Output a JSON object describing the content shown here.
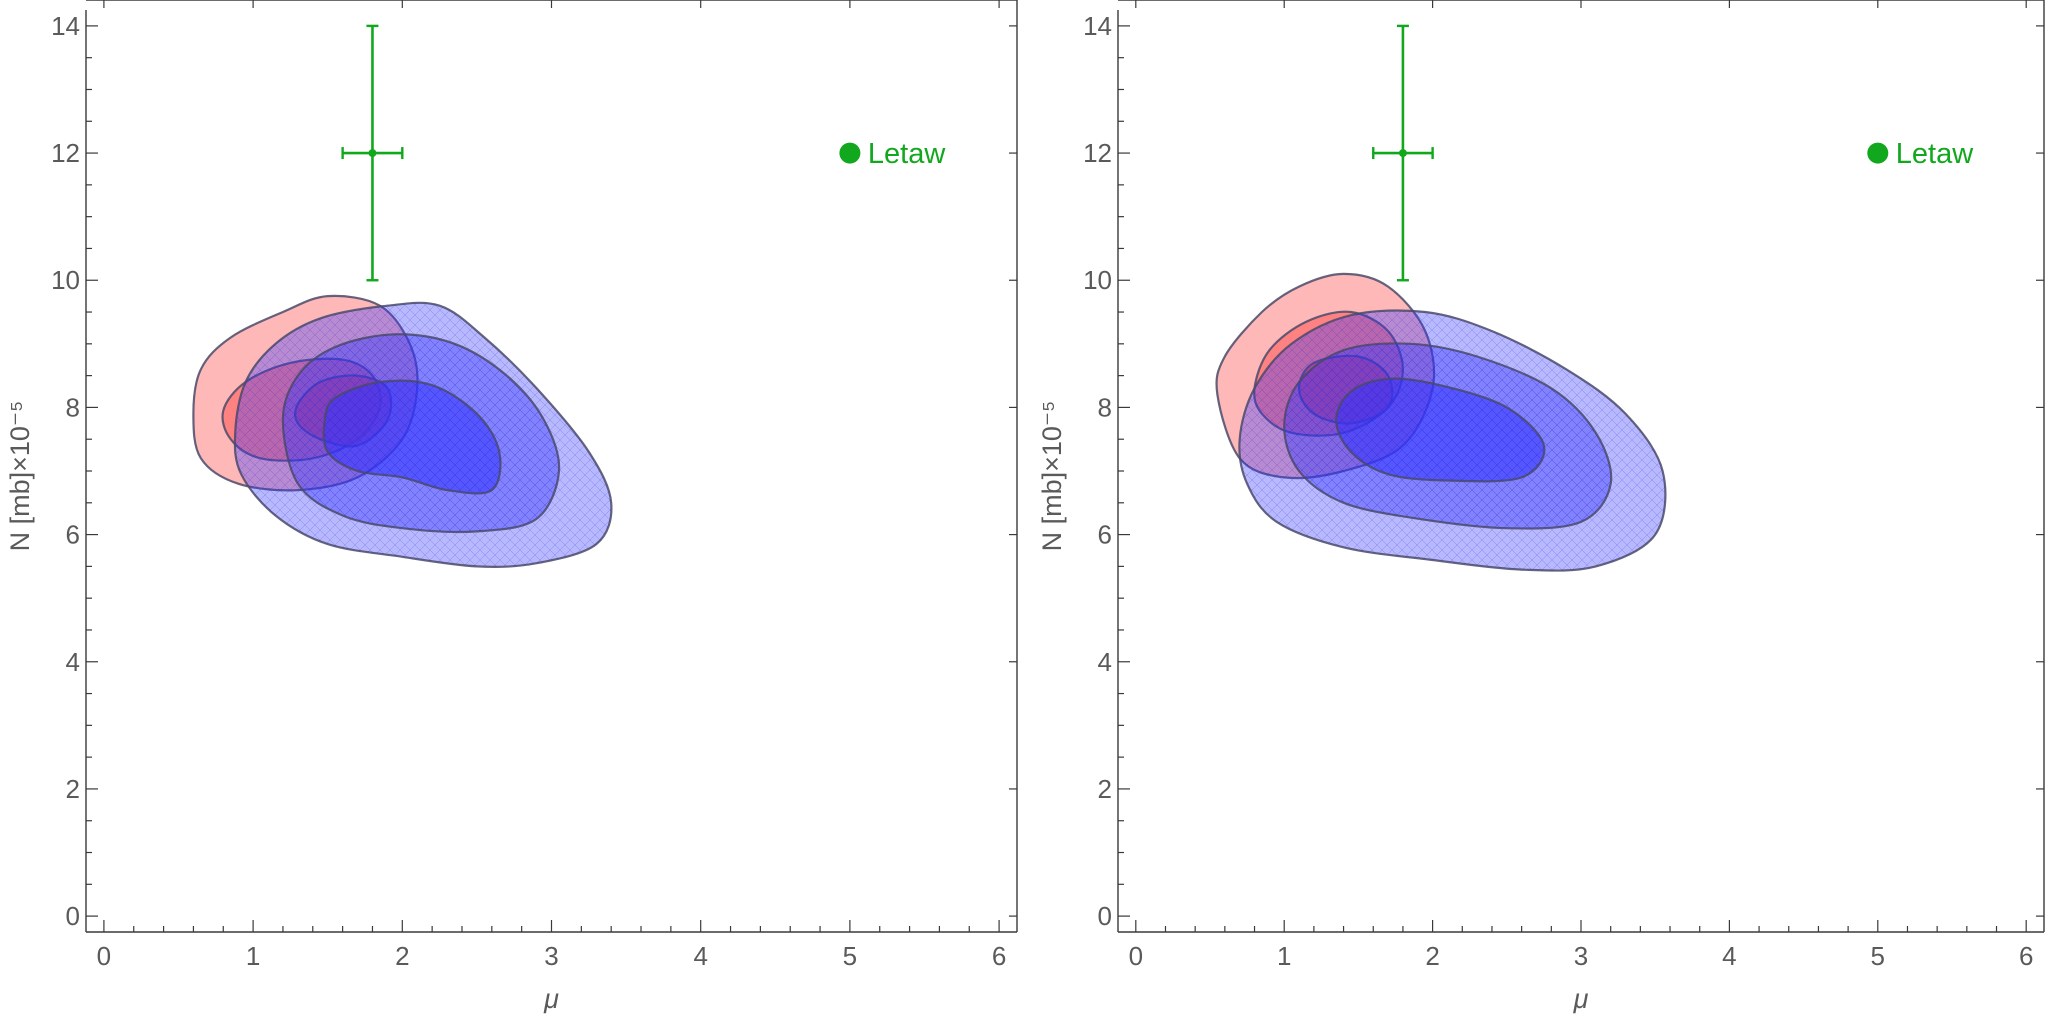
{
  "chart_data": [
    {
      "type": "contour",
      "xlabel": "μ",
      "ylabel": "N [mb]×10⁻⁵",
      "xlim": [
        -0.12,
        6.12
      ],
      "ylim": [
        -0.25,
        14.25
      ],
      "xticks": [
        0,
        1,
        2,
        3,
        4,
        5,
        6
      ],
      "yticks": [
        0,
        2,
        4,
        6,
        8,
        10,
        12,
        14
      ],
      "grid": false,
      "legend": {
        "position": "top-right",
        "entries": [
          {
            "name": "Letaw",
            "color": "#11a81e",
            "marker": "circle"
          }
        ]
      },
      "point": {
        "name": "Letaw",
        "x": 1.8,
        "y": 12,
        "xerr": 0.2,
        "yerr": 2,
        "color": "#11a81e"
      },
      "contours": [
        {
          "group": "red",
          "level": 3,
          "color": "#ff3333",
          "points": [
            [
              0.6,
              7.9
            ],
            [
              0.65,
              8.6
            ],
            [
              0.85,
              9.1
            ],
            [
              1.2,
              9.5
            ],
            [
              1.5,
              9.75
            ],
            [
              1.85,
              9.6
            ],
            [
              2.05,
              9.0
            ],
            [
              2.1,
              8.3
            ],
            [
              2.0,
              7.5
            ],
            [
              1.7,
              6.9
            ],
            [
              1.3,
              6.7
            ],
            [
              0.9,
              6.8
            ],
            [
              0.65,
              7.2
            ]
          ]
        },
        {
          "group": "red",
          "level": 2,
          "color": "#ff3333",
          "points": [
            [
              0.8,
              7.95
            ],
            [
              0.95,
              8.4
            ],
            [
              1.25,
              8.7
            ],
            [
              1.6,
              8.75
            ],
            [
              1.8,
              8.5
            ],
            [
              1.85,
              8.0
            ],
            [
              1.7,
              7.5
            ],
            [
              1.4,
              7.2
            ],
            [
              1.05,
              7.2
            ],
            [
              0.85,
              7.5
            ]
          ]
        },
        {
          "group": "red",
          "level": 1,
          "color": "#ff3333",
          "points": [
            [
              1.3,
              8.05
            ],
            [
              1.45,
              8.4
            ],
            [
              1.7,
              8.5
            ],
            [
              1.9,
              8.3
            ],
            [
              1.9,
              7.8
            ],
            [
              1.7,
              7.4
            ],
            [
              1.45,
              7.5
            ],
            [
              1.3,
              7.75
            ]
          ]
        },
        {
          "group": "blue",
          "level": 3,
          "color": "#3333ff",
          "points": [
            [
              0.88,
              7.6
            ],
            [
              0.95,
              8.4
            ],
            [
              1.15,
              9.0
            ],
            [
              1.45,
              9.4
            ],
            [
              1.9,
              9.6
            ],
            [
              2.25,
              9.6
            ],
            [
              2.55,
              9.1
            ],
            [
              2.9,
              8.3
            ],
            [
              3.25,
              7.3
            ],
            [
              3.4,
              6.5
            ],
            [
              3.3,
              5.85
            ],
            [
              2.9,
              5.55
            ],
            [
              2.5,
              5.5
            ],
            [
              2.0,
              5.65
            ],
            [
              1.5,
              5.85
            ],
            [
              1.15,
              6.3
            ],
            [
              0.92,
              6.95
            ]
          ]
        },
        {
          "group": "blue",
          "level": 2,
          "color": "#3333ff",
          "points": [
            [
              1.2,
              7.8
            ],
            [
              1.3,
              8.5
            ],
            [
              1.55,
              8.95
            ],
            [
              1.95,
              9.15
            ],
            [
              2.35,
              9.0
            ],
            [
              2.7,
              8.5
            ],
            [
              2.95,
              7.8
            ],
            [
              3.05,
              7.0
            ],
            [
              2.9,
              6.25
            ],
            [
              2.5,
              6.05
            ],
            [
              2.0,
              6.1
            ],
            [
              1.6,
              6.3
            ],
            [
              1.3,
              6.8
            ]
          ]
        },
        {
          "group": "blue",
          "level": 1,
          "color": "#3333ff",
          "points": [
            [
              1.48,
              7.8
            ],
            [
              1.55,
              8.15
            ],
            [
              1.85,
              8.4
            ],
            [
              2.2,
              8.35
            ],
            [
              2.5,
              7.9
            ],
            [
              2.65,
              7.3
            ],
            [
              2.6,
              6.7
            ],
            [
              2.3,
              6.7
            ],
            [
              2.0,
              6.9
            ],
            [
              1.7,
              7.0
            ],
            [
              1.5,
              7.3
            ]
          ]
        }
      ]
    },
    {
      "type": "contour",
      "xlabel": "μ",
      "ylabel": "N [mb]×10⁻⁵",
      "xlim": [
        -0.12,
        6.12
      ],
      "ylim": [
        -0.25,
        14.25
      ],
      "xticks": [
        0,
        1,
        2,
        3,
        4,
        5,
        6
      ],
      "yticks": [
        0,
        2,
        4,
        6,
        8,
        10,
        12,
        14
      ],
      "grid": false,
      "legend": {
        "position": "top-right",
        "entries": [
          {
            "name": "Letaw",
            "color": "#11a81e",
            "marker": "circle"
          }
        ]
      },
      "point": {
        "name": "Letaw",
        "x": 1.8,
        "y": 12,
        "xerr": 0.2,
        "yerr": 2,
        "color": "#11a81e"
      },
      "contours": [
        {
          "group": "red",
          "level": 3,
          "color": "#ff3333",
          "points": [
            [
              0.55,
              8.2
            ],
            [
              0.6,
              8.8
            ],
            [
              0.85,
              9.5
            ],
            [
              1.1,
              9.9
            ],
            [
              1.4,
              10.1
            ],
            [
              1.7,
              9.9
            ],
            [
              1.95,
              9.2
            ],
            [
              2.0,
              8.3
            ],
            [
              1.8,
              7.4
            ],
            [
              1.4,
              7.0
            ],
            [
              1.0,
              6.9
            ],
            [
              0.7,
              7.2
            ]
          ]
        },
        {
          "group": "red",
          "level": 2,
          "color": "#ff3333",
          "points": [
            [
              0.8,
              8.3
            ],
            [
              0.9,
              8.9
            ],
            [
              1.15,
              9.35
            ],
            [
              1.45,
              9.5
            ],
            [
              1.7,
              9.2
            ],
            [
              1.8,
              8.6
            ],
            [
              1.7,
              8.0
            ],
            [
              1.4,
              7.6
            ],
            [
              1.05,
              7.6
            ],
            [
              0.85,
              7.9
            ]
          ]
        },
        {
          "group": "red",
          "level": 1,
          "color": "#ff3333",
          "points": [
            [
              1.1,
              8.3
            ],
            [
              1.2,
              8.7
            ],
            [
              1.5,
              8.8
            ],
            [
              1.7,
              8.5
            ],
            [
              1.7,
              8.0
            ],
            [
              1.45,
              7.75
            ],
            [
              1.2,
              7.9
            ]
          ]
        },
        {
          "group": "blue",
          "level": 3,
          "color": "#3333ff",
          "points": [
            [
              0.7,
              7.5
            ],
            [
              0.8,
              8.3
            ],
            [
              1.05,
              9.0
            ],
            [
              1.45,
              9.45
            ],
            [
              1.95,
              9.5
            ],
            [
              2.4,
              9.2
            ],
            [
              2.9,
              8.6
            ],
            [
              3.3,
              7.9
            ],
            [
              3.55,
              7.0
            ],
            [
              3.5,
              6.0
            ],
            [
              3.1,
              5.5
            ],
            [
              2.6,
              5.45
            ],
            [
              2.0,
              5.6
            ],
            [
              1.4,
              5.8
            ],
            [
              0.95,
              6.2
            ],
            [
              0.75,
              6.8
            ]
          ]
        },
        {
          "group": "blue",
          "level": 2,
          "color": "#3333ff",
          "points": [
            [
              1.0,
              7.7
            ],
            [
              1.1,
              8.4
            ],
            [
              1.4,
              8.9
            ],
            [
              1.85,
              9.0
            ],
            [
              2.3,
              8.8
            ],
            [
              2.8,
              8.3
            ],
            [
              3.1,
              7.6
            ],
            [
              3.2,
              6.8
            ],
            [
              3.0,
              6.2
            ],
            [
              2.5,
              6.1
            ],
            [
              1.9,
              6.25
            ],
            [
              1.4,
              6.5
            ],
            [
              1.1,
              7.0
            ]
          ]
        },
        {
          "group": "blue",
          "level": 1,
          "color": "#3333ff",
          "points": [
            [
              1.35,
              7.8
            ],
            [
              1.45,
              8.25
            ],
            [
              1.7,
              8.45
            ],
            [
              2.05,
              8.35
            ],
            [
              2.5,
              8.0
            ],
            [
              2.75,
              7.4
            ],
            [
              2.6,
              6.9
            ],
            [
              2.1,
              6.85
            ],
            [
              1.7,
              6.95
            ],
            [
              1.45,
              7.3
            ]
          ]
        }
      ]
    }
  ]
}
